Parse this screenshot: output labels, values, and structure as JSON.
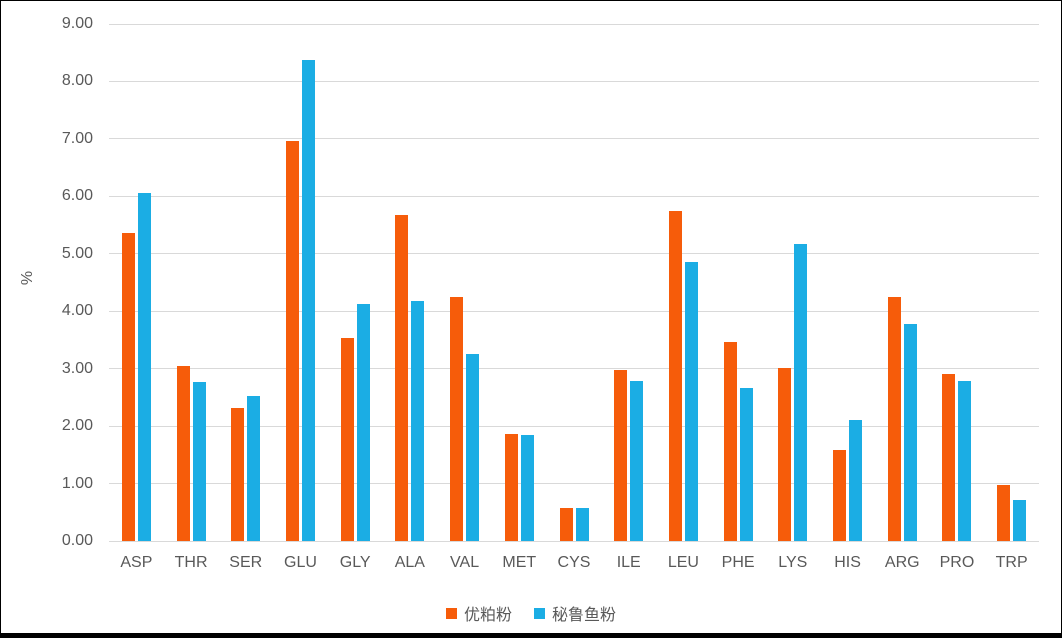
{
  "colors": {
    "series_orange": "#F65C0A",
    "series_blue": "#1BADE4",
    "gridline": "#d9d9d9",
    "axis_text": "#595959",
    "frame_border": "#000000",
    "background": "#ffffff"
  },
  "chart": {
    "y_tick_labels": [
      "0.00",
      "1.00",
      "2.00",
      "3.00",
      "4.00",
      "5.00",
      "6.00",
      "7.00",
      "8.00",
      "9.00"
    ]
  },
  "chart_data": {
    "type": "bar",
    "title": "",
    "xlabel": "",
    "ylabel": "%",
    "ylim": [
      0,
      9
    ],
    "ytick_step": 1,
    "grid": true,
    "legend_position": "bottom",
    "categories": [
      "ASP",
      "THR",
      "SER",
      "GLU",
      "GLY",
      "ALA",
      "VAL",
      "MET",
      "CYS",
      "ILE",
      "LEU",
      "PHE",
      "LYS",
      "HIS",
      "ARG",
      "PRO",
      "TRP"
    ],
    "series": [
      {
        "name": "优粕粉",
        "color": "#F65C0A",
        "values": [
          5.37,
          3.05,
          2.31,
          6.97,
          3.54,
          5.68,
          4.25,
          1.87,
          0.58,
          2.98,
          5.75,
          3.47,
          3.01,
          1.58,
          4.25,
          2.91,
          0.97
        ]
      },
      {
        "name": "秘鲁鱼粉",
        "color": "#1BADE4",
        "values": [
          6.05,
          2.76,
          2.52,
          8.37,
          4.13,
          4.18,
          3.26,
          1.85,
          0.57,
          2.79,
          4.86,
          2.66,
          5.17,
          2.11,
          3.78,
          2.79,
          0.72
        ]
      }
    ]
  }
}
